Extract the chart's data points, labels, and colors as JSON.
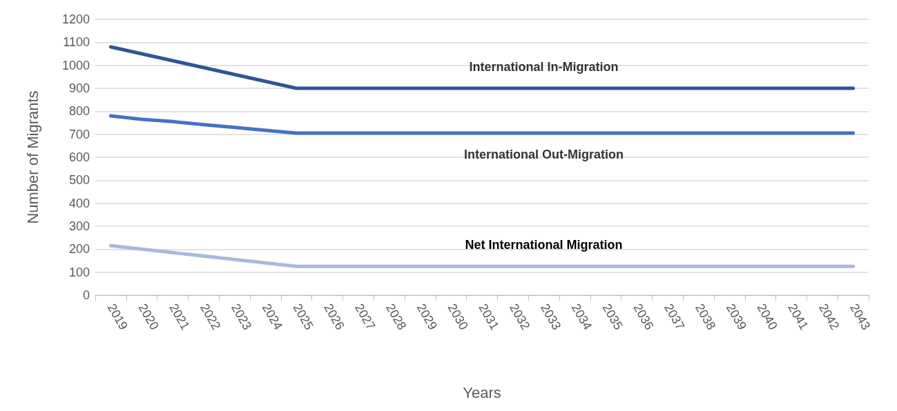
{
  "chart_data": {
    "type": "line",
    "xlabel": "Years",
    "ylabel": "Number of Migrants",
    "categories": [
      "2019",
      "2020",
      "2021",
      "2022",
      "2023",
      "2024",
      "2025",
      "2026",
      "2027",
      "2028",
      "2029",
      "2030",
      "2031",
      "2032",
      "2033",
      "2034",
      "2035",
      "2036",
      "2037",
      "2038",
      "2039",
      "2040",
      "2041",
      "2042",
      "2043"
    ],
    "series": [
      {
        "name": "International In-Migration",
        "color": "#2f5597",
        "values": [
          1080,
          1050,
          1020,
          990,
          960,
          930,
          900,
          900,
          900,
          900,
          900,
          900,
          900,
          900,
          900,
          900,
          900,
          900,
          900,
          900,
          900,
          900,
          900,
          900,
          900
        ]
      },
      {
        "name": "International Out-Migration",
        "color": "#4472c4",
        "values": [
          780,
          765,
          755,
          742,
          730,
          717,
          705,
          705,
          705,
          705,
          705,
          705,
          705,
          705,
          705,
          705,
          705,
          705,
          705,
          705,
          705,
          705,
          705,
          705,
          705
        ]
      },
      {
        "name": "Net International Migration",
        "color": "#a9b8e0",
        "values": [
          215,
          200,
          185,
          170,
          155,
          140,
          125,
          125,
          125,
          125,
          125,
          125,
          125,
          125,
          125,
          125,
          125,
          125,
          125,
          125,
          125,
          125,
          125,
          125,
          125
        ]
      }
    ],
    "ylim": [
      0,
      1200
    ],
    "yticks": [
      0,
      100,
      200,
      300,
      400,
      500,
      600,
      700,
      800,
      900,
      1000,
      1100,
      1200
    ],
    "grid": "y",
    "legend": false,
    "marker": "none",
    "line_style": "solid"
  }
}
